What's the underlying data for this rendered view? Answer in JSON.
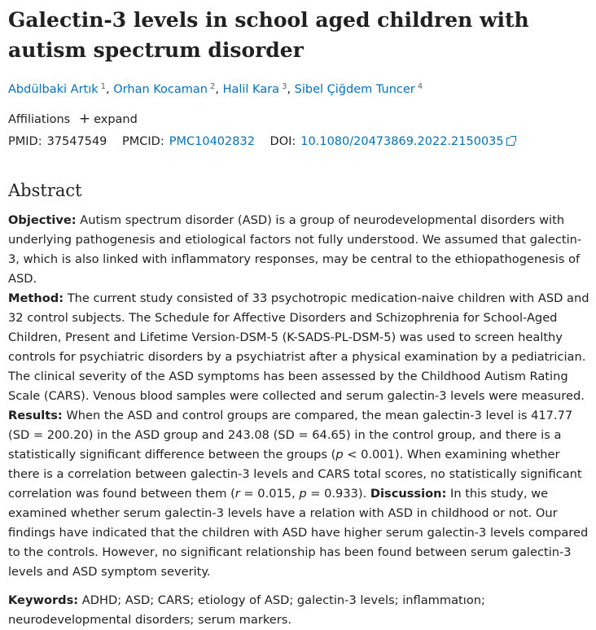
{
  "article": {
    "title": "Galectin-3 levels in school aged children with autism spectrum disorder",
    "authors": [
      {
        "name": "Abdülbaki Artık",
        "sup": "1"
      },
      {
        "name": "Orhan Kocaman",
        "sup": "2"
      },
      {
        "name": "Halil Kara",
        "sup": "3"
      },
      {
        "name": "Sibel Çiğdem Tuncer",
        "sup": "4"
      }
    ],
    "affiliations_label": "Affiliations",
    "expand_label": "expand",
    "pmid_label": "PMID:",
    "pmid": "37547549",
    "pmcid_label": "PMCID:",
    "pmcid": "PMC10402832",
    "doi_label": "DOI:",
    "doi": "10.1080/20473869.2022.2150035"
  },
  "abstract": {
    "heading": "Abstract",
    "objective_label": "Objective:",
    "objective_text": " Autism spectrum disorder (ASD) is a group of neurodevelopmental disorders with underlying pathogenesis and etiological factors not fully understood. We assumed that galectin-3, which is also linked with inflammatory responses, may be central to the ethiopathogenesis of ASD.",
    "method_label": "Method:",
    "method_text": " The current study consisted of 33 psychotropic medication-naive children with ASD and 32 control subjects. The Schedule for Affective Disorders and Schizophrenia for School-Aged Children, Present and Lifetime Version-DSM-5 (K-SADS-PL-DSM-5) was used to screen healthy controls for psychiatric disorders by a psychiatrist after a physical examination by a pediatrician. The clinical severity of the ASD symptoms has been assessed by the Childhood Autism Rating Scale (CARS). Venous blood samples were collected and serum galectin-3 levels were measured.",
    "results_label": "Results:",
    "results_text_1": " When the ASD and control groups are compared, the mean galectin-3 level is 417.77 (SD = 200.20) in the ASD group and 243.08 (SD = 64.65) in the control group, and there is a statistically significant difference between the groups (",
    "results_p1": "p",
    "results_text_2": " < 0.001). When examining whether there is a correlation between galectin-3 levels and CARS total scores, no statistically significant correlation was found between them (",
    "results_r": "r",
    "results_text_3": " = 0.015, ",
    "results_p2": "p",
    "results_text_4": " = 0.933).",
    "discussion_label": "Discussion:",
    "discussion_text": " In this study, we examined whether serum galectin-3 levels have a relation with ASD in childhood or not. Our findings have indicated that the children with ASD have higher serum galectin-3 levels compared to the controls. However, no significant relationship has been found between serum galectin-3 levels and ASD symptom severity."
  },
  "keywords": {
    "label": "Keywords:",
    "text": " ADHD; ASD; CARS; etiology of ASD; galectin-3 levels; inflammatıon; neurodevelopmental disorders; serum markers."
  },
  "colors": {
    "link": "#0071bc",
    "text": "#212121"
  }
}
